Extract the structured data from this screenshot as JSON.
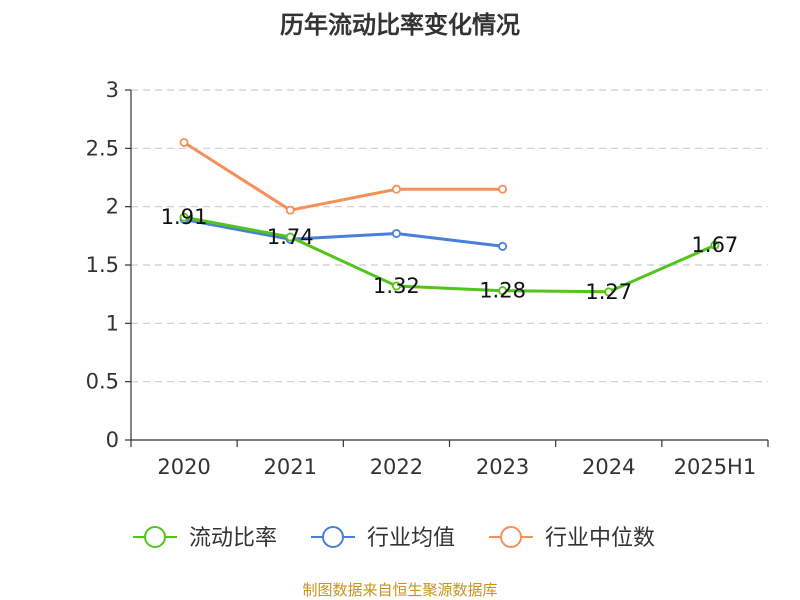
{
  "chart_data": {
    "type": "line",
    "title": "历年流动比率变化情况",
    "categories": [
      "2020",
      "2021",
      "2022",
      "2023",
      "2024",
      "2025H1"
    ],
    "ylim": [
      0,
      3
    ],
    "yticks": [
      "0",
      "0.5",
      "1",
      "1.5",
      "2",
      "2.5",
      "3"
    ],
    "grid": true,
    "legend_position": "bottom",
    "series": [
      {
        "name": "流动比率",
        "color": "#52c41a",
        "values": [
          1.91,
          1.74,
          1.32,
          1.28,
          1.27,
          1.67
        ],
        "data_labels": [
          "1.91",
          "1.74",
          "1.32",
          "1.28",
          "1.27",
          "1.67"
        ]
      },
      {
        "name": "行业均值",
        "color": "#4a7fd9",
        "values": [
          1.89,
          1.72,
          1.77,
          1.66,
          null,
          null
        ]
      },
      {
        "name": "行业中位数",
        "color": "#f5905a",
        "values": [
          2.55,
          1.97,
          2.15,
          2.15,
          null,
          null
        ]
      }
    ],
    "source": "制图数据来自恒生聚源数据库"
  }
}
